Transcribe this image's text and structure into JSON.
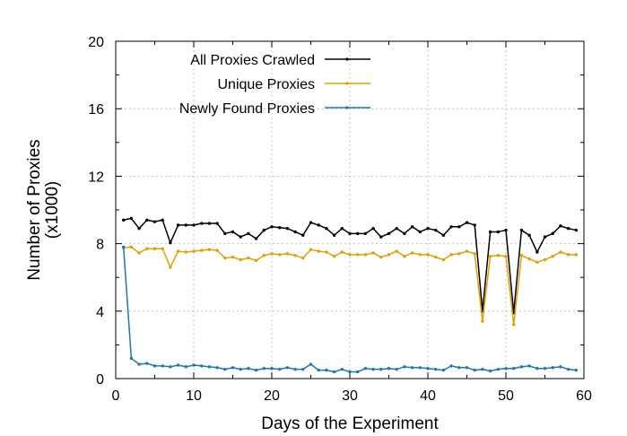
{
  "chart_data": {
    "type": "line",
    "title": "",
    "xlabel": "Days of the Experiment",
    "ylabel": [
      "Number of Proxies",
      "(x1000)"
    ],
    "xlim": [
      0,
      60
    ],
    "ylim": [
      0,
      20
    ],
    "xticks": [
      0,
      10,
      20,
      30,
      40,
      50,
      60
    ],
    "yticks": [
      0,
      4,
      8,
      12,
      16,
      20
    ],
    "grid": true,
    "legend_position": "top-left",
    "x": [
      1,
      2,
      3,
      4,
      5,
      6,
      7,
      8,
      9,
      10,
      11,
      12,
      13,
      14,
      15,
      16,
      17,
      18,
      19,
      20,
      21,
      22,
      23,
      24,
      25,
      26,
      27,
      28,
      29,
      30,
      31,
      32,
      33,
      34,
      35,
      36,
      37,
      38,
      39,
      40,
      41,
      42,
      43,
      44,
      45,
      46,
      47,
      48,
      49,
      50,
      51,
      52,
      53,
      54,
      55,
      56,
      57,
      58,
      59
    ],
    "series": [
      {
        "name": "All Proxies Crawled",
        "color": "#000000",
        "values": [
          9.4,
          9.5,
          8.9,
          9.4,
          9.3,
          9.4,
          8.05,
          9.1,
          9.1,
          9.1,
          9.2,
          9.2,
          9.2,
          8.6,
          8.7,
          8.4,
          8.6,
          8.3,
          8.8,
          9.0,
          8.95,
          8.9,
          8.7,
          8.5,
          9.25,
          9.1,
          8.9,
          8.5,
          8.9,
          8.6,
          8.6,
          8.6,
          8.9,
          8.4,
          8.6,
          8.9,
          8.6,
          9.0,
          8.7,
          8.9,
          8.8,
          8.5,
          9.0,
          9.0,
          9.25,
          9.1,
          4.0,
          8.7,
          8.7,
          8.8,
          3.9,
          8.8,
          8.5,
          7.5,
          8.4,
          8.6,
          9.05,
          8.9,
          8.8
        ]
      },
      {
        "name": "Unique Proxies",
        "color": "#e69f00",
        "values": [
          7.75,
          7.8,
          7.45,
          7.7,
          7.7,
          7.7,
          6.6,
          7.55,
          7.5,
          7.55,
          7.6,
          7.65,
          7.6,
          7.15,
          7.2,
          7.05,
          7.15,
          7.0,
          7.3,
          7.4,
          7.35,
          7.4,
          7.3,
          7.15,
          7.65,
          7.55,
          7.5,
          7.25,
          7.5,
          7.35,
          7.35,
          7.35,
          7.45,
          7.2,
          7.35,
          7.55,
          7.25,
          7.45,
          7.35,
          7.35,
          7.2,
          7.05,
          7.35,
          7.4,
          7.55,
          7.4,
          3.4,
          7.25,
          7.3,
          7.25,
          3.2,
          7.3,
          7.1,
          6.9,
          7.05,
          7.25,
          7.5,
          7.35,
          7.35
        ]
      },
      {
        "name": "Newly Found Proxies",
        "color": "#1f77b4",
        "values": [
          7.8,
          1.2,
          0.85,
          0.9,
          0.75,
          0.75,
          0.7,
          0.8,
          0.7,
          0.8,
          0.75,
          0.7,
          0.65,
          0.55,
          0.65,
          0.55,
          0.6,
          0.5,
          0.6,
          0.6,
          0.55,
          0.65,
          0.55,
          0.55,
          0.85,
          0.5,
          0.5,
          0.4,
          0.55,
          0.4,
          0.4,
          0.6,
          0.55,
          0.55,
          0.6,
          0.55,
          0.7,
          0.65,
          0.65,
          0.6,
          0.55,
          0.5,
          0.75,
          0.65,
          0.65,
          0.5,
          0.55,
          0.45,
          0.55,
          0.6,
          0.6,
          0.7,
          0.75,
          0.6,
          0.6,
          0.65,
          0.7,
          0.55,
          0.5
        ]
      }
    ]
  }
}
